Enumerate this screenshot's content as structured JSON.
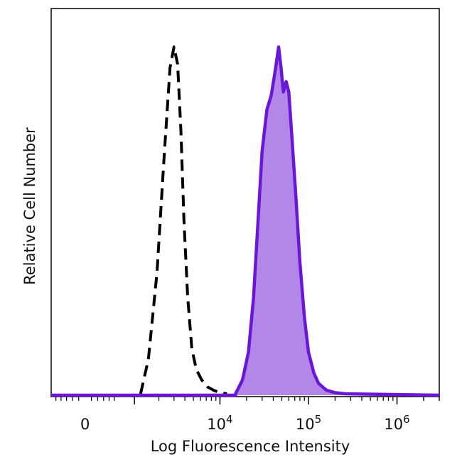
{
  "chart_data": {
    "type": "area",
    "xlabel": "Log Fluorescence Intensity",
    "ylabel": "Relative Cell Number",
    "x_scale": "biexponential",
    "xlim": [
      -600,
      3000000
    ],
    "ylim": [
      0,
      100
    ],
    "tick_labels": [
      {
        "value": 0,
        "base": "0",
        "exp": ""
      },
      {
        "value": 10000,
        "base": "10",
        "exp": "4"
      },
      {
        "value": 100000,
        "base": "10",
        "exp": "5"
      },
      {
        "value": 1000000,
        "base": "10",
        "exp": "6"
      }
    ],
    "series": [
      {
        "style": "dashed",
        "color": "#000000",
        "x": [
          1200,
          1500,
          1900,
          2300,
          2700,
          3000,
          3300,
          3600,
          3900,
          4300,
          4800,
          5400,
          6200,
          7200,
          8500,
          10000,
          12000
        ],
        "y": [
          0,
          10,
          35,
          68,
          94,
          100,
          95,
          76,
          50,
          28,
          13,
          7,
          4,
          2,
          1,
          0.3,
          0
        ]
      },
      {
        "style": "filled",
        "color": "#6a17d8",
        "fill": "#b387e8",
        "x": [
          15000,
          18000,
          21000,
          24000,
          27000,
          30000,
          34000,
          38000,
          42000,
          46000,
          49000,
          52000,
          56000,
          60000,
          65000,
          72000,
          80000,
          90000,
          100000,
          115000,
          130000,
          160000,
          200000,
          260000
        ],
        "y": [
          0,
          4,
          12,
          28,
          50,
          70,
          82,
          86,
          93,
          100,
          94,
          87,
          90,
          87,
          74,
          57,
          38,
          22,
          12,
          6,
          3,
          1,
          0.3,
          0
        ]
      }
    ]
  }
}
